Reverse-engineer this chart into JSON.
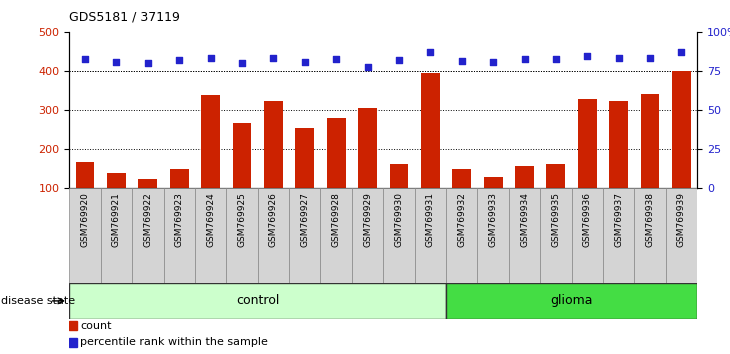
{
  "title": "GDS5181 / 37119",
  "samples": [
    "GSM769920",
    "GSM769921",
    "GSM769922",
    "GSM769923",
    "GSM769924",
    "GSM769925",
    "GSM769926",
    "GSM769927",
    "GSM769928",
    "GSM769929",
    "GSM769930",
    "GSM769931",
    "GSM769932",
    "GSM769933",
    "GSM769934",
    "GSM769935",
    "GSM769936",
    "GSM769937",
    "GSM769938",
    "GSM769939"
  ],
  "counts": [
    165,
    138,
    122,
    148,
    338,
    265,
    323,
    253,
    278,
    305,
    160,
    395,
    148,
    128,
    155,
    160,
    328,
    322,
    340,
    400
  ],
  "percentile_ranks": [
    430,
    422,
    420,
    428,
    432,
    420,
    433,
    422,
    430,
    410,
    428,
    447,
    425,
    423,
    430,
    430,
    437,
    433,
    432,
    447
  ],
  "group_labels": [
    "control",
    "glioma"
  ],
  "group_control_count": 12,
  "group_glioma_count": 8,
  "bar_color": "#cc2200",
  "dot_color": "#2222cc",
  "control_bg": "#ccffcc",
  "glioma_bg": "#44dd44",
  "ylim_left": [
    100,
    500
  ],
  "ylim_right": [
    0,
    100
  ],
  "yticks_left": [
    100,
    200,
    300,
    400,
    500
  ],
  "yticks_right": [
    0,
    25,
    50,
    75,
    100
  ],
  "grid_values": [
    200,
    300,
    400
  ],
  "legend_count_label": "count",
  "legend_pct_label": "percentile rank within the sample",
  "disease_state_label": "disease state",
  "cell_bg": "#d4d4d4",
  "cell_edge": "#888888"
}
